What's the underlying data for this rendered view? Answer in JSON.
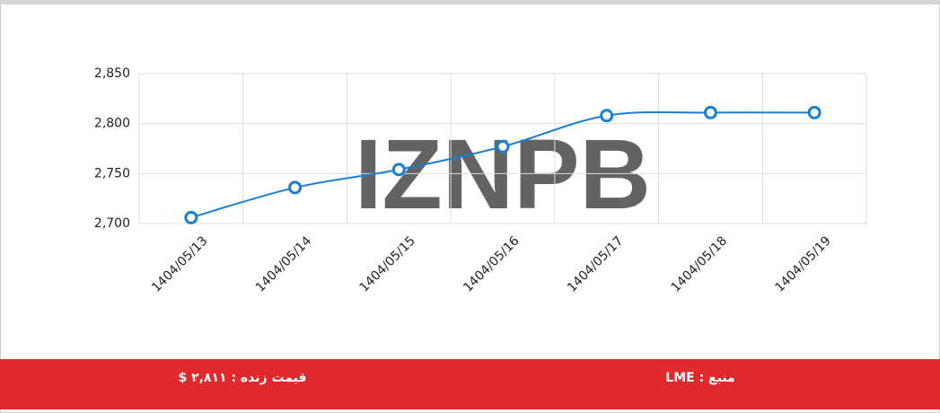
{
  "chart_data": {
    "type": "line",
    "categories": [
      "1404/05/13",
      "1404/05/14",
      "1404/05/15",
      "1404/05/16",
      "1404/05/17",
      "1404/05/18",
      "1404/05/19"
    ],
    "values": [
      2706,
      2736,
      2754,
      2777,
      2808,
      2811,
      2811
    ],
    "color": "#1a7fd4",
    "ylim": [
      2700,
      2850
    ],
    "yticks": [
      {
        "value": 2700,
        "label": "2,700"
      },
      {
        "value": 2750,
        "label": "2,750"
      },
      {
        "value": 2800,
        "label": "2,800"
      },
      {
        "value": 2850,
        "label": "2,850"
      }
    ],
    "grid": true,
    "watermark": "IZNPB"
  },
  "footer": {
    "live_price": "قیمت زنده : ۲,۸۱۱ $",
    "source": "منبع : LME"
  }
}
